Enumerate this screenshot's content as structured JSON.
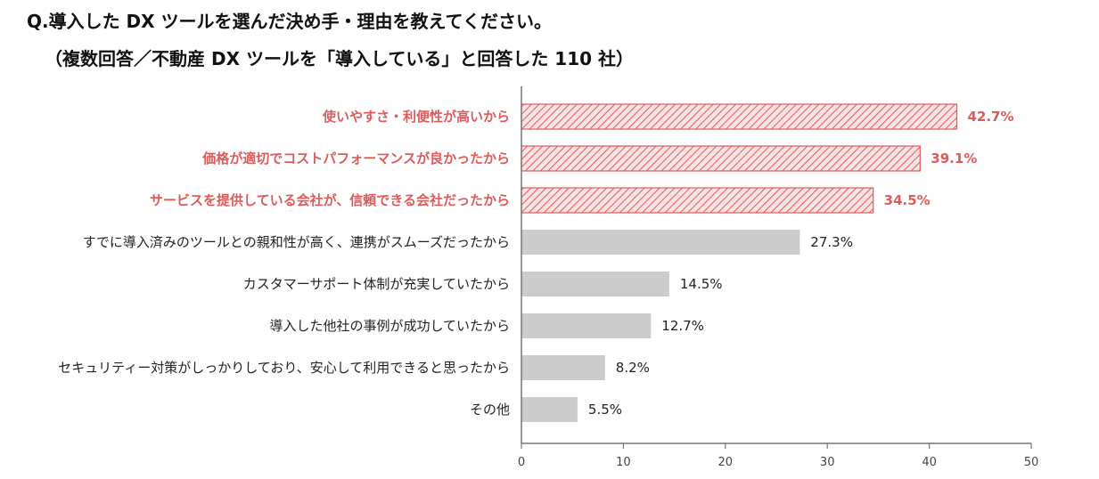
{
  "chart_data": {
    "type": "bar",
    "orientation": "horizontal",
    "title": "Q.導入した DX ツールを選んだ決め手・理由を教えてください。",
    "subtitle": "（複数回答／不動産 DX ツールを「導入している」と回答した 110 社）",
    "categories": [
      "使いやすさ・利便性が高いから",
      "価格が適切でコストパフォーマンスが良かったから",
      "サービスを提供している会社が、信頼できる会社だったから",
      "すでに導入済みのツールとの親和性が高く、連携がスムーズだったから",
      "カスタマーサポート体制が充実していたから",
      "導入した他社の事例が成功していたから",
      "セキュリティー対策がしっかりしており、安心して利用できると思ったから",
      "その他"
    ],
    "values": [
      42.7,
      39.1,
      34.5,
      27.3,
      14.5,
      12.7,
      8.2,
      5.5
    ],
    "value_labels": [
      "42.7%",
      "39.1%",
      "34.5%",
      "27.3%",
      "14.5%",
      "12.7%",
      "8.2%",
      "5.5%"
    ],
    "highlighted": [
      true,
      true,
      true,
      false,
      false,
      false,
      false,
      false
    ],
    "xlim": [
      0,
      50
    ],
    "xticks": [
      0,
      10,
      20,
      30,
      40,
      50
    ],
    "grid": false,
    "colors": {
      "highlight": "#e05a5a",
      "highlight_hatch_bg": "#fbe3e3",
      "normal": "#cccccc",
      "text": "#222222",
      "axis": "#777777"
    }
  }
}
